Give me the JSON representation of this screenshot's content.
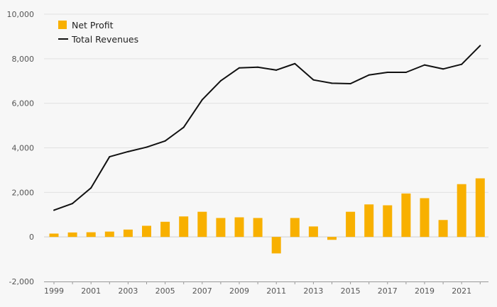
{
  "chart_data": {
    "type": "bar+line",
    "title": "",
    "xlabel": "",
    "ylabel": "",
    "ylim": [
      -2000,
      10000
    ],
    "yticks": [
      -2000,
      0,
      2000,
      4000,
      6000,
      8000,
      10000
    ],
    "ytick_labels": [
      "-2,000",
      "0",
      "2,000",
      "4,000",
      "6,000",
      "8,000",
      "10,000"
    ],
    "categories": [
      1999,
      2000,
      2001,
      2002,
      2003,
      2004,
      2005,
      2006,
      2007,
      2008,
      2009,
      2010,
      2011,
      2012,
      2013,
      2014,
      2015,
      2016,
      2017,
      2018,
      2019,
      2020,
      2021,
      2022
    ],
    "xtick_labels": [
      "1999",
      "2001",
      "2003",
      "2005",
      "2007",
      "2009",
      "2011",
      "2013",
      "2015",
      "2017",
      "2019",
      "2021"
    ],
    "legend_position": "top-left",
    "series": [
      {
        "name": "Net Profit",
        "type": "bar",
        "color": "#f8b000",
        "values": [
          150,
          200,
          210,
          240,
          330,
          500,
          680,
          920,
          1130,
          850,
          880,
          850,
          -740,
          850,
          470,
          -130,
          1130,
          1460,
          1420,
          1950,
          1740,
          760,
          2370,
          2630
        ]
      },
      {
        "name": "Total Revenues",
        "type": "line",
        "color": "#111111",
        "values": [
          1200,
          1500,
          2200,
          3600,
          3830,
          4030,
          4310,
          4920,
          6160,
          7010,
          7590,
          7620,
          7490,
          7780,
          7050,
          6900,
          6880,
          7270,
          7390,
          7390,
          7720,
          7540,
          7750,
          8590
        ]
      }
    ]
  }
}
